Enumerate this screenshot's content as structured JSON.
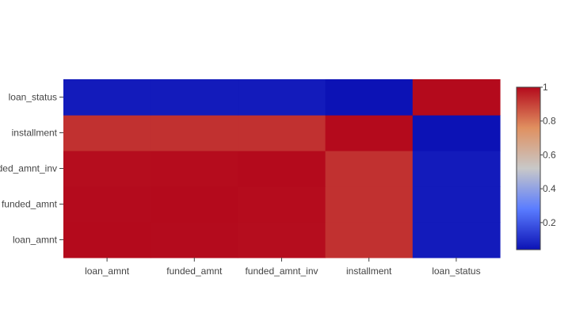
{
  "chart_data": {
    "type": "heatmap",
    "x_categories": [
      "loan_amnt",
      "funded_amnt",
      "funded_amnt_inv",
      "installment",
      "loan_status"
    ],
    "y_categories": [
      "loan_amnt",
      "funded_amnt",
      "funded_amnt_inv",
      "installment",
      "loan_status"
    ],
    "z": [
      [
        1.0,
        0.998,
        0.994,
        0.93,
        0.06
      ],
      [
        0.998,
        1.0,
        0.996,
        0.93,
        0.06
      ],
      [
        0.994,
        0.996,
        1.0,
        0.93,
        0.06
      ],
      [
        0.93,
        0.93,
        0.93,
        1.0,
        0.04
      ],
      [
        0.06,
        0.06,
        0.06,
        0.04,
        1.0
      ]
    ],
    "zmin": 0.04,
    "zmax": 1.0,
    "colorscale": [
      "#0c12b5",
      "#5a7cff",
      "#c8c8c8",
      "#e09060",
      "#b40a1c"
    ],
    "colorbar": {
      "ticks": [
        0.2,
        0.4,
        0.6,
        0.8,
        1
      ],
      "tick_labels": [
        "0.2",
        "0.4",
        "0.6",
        "0.8",
        "1"
      ]
    },
    "title": "",
    "xlabel": "",
    "ylabel": ""
  }
}
